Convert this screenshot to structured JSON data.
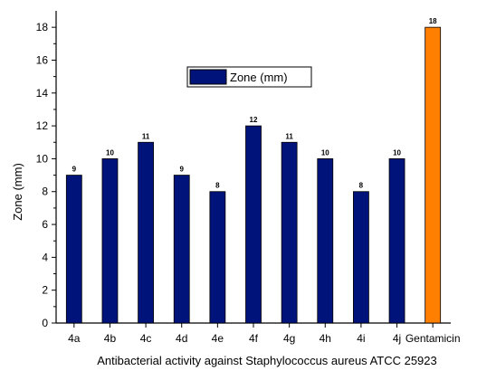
{
  "chart_data": {
    "type": "bar",
    "categories": [
      "4a",
      "4b",
      "4c",
      "4d",
      "4e",
      "4f",
      "4g",
      "4h",
      "4i",
      "4j",
      "Gentamicin"
    ],
    "series": [
      {
        "name": "Zone (mm)",
        "values": [
          9,
          10,
          11,
          9,
          8,
          12,
          11,
          10,
          8,
          10,
          18
        ],
        "color": "#00137a"
      }
    ],
    "highlight": {
      "category": "Gentamicin",
      "color": "#ff7f00"
    },
    "data_labels": [
      "9",
      "10",
      "11",
      "9",
      "8",
      "12",
      "11",
      "10",
      "8",
      "10",
      "18"
    ],
    "xlabel": "Antibacterial activity against Staphylococcus aureus ATCC 25923",
    "ylabel": "Zone (mm)",
    "ylim": [
      0,
      19
    ],
    "yticks": [
      0,
      2,
      4,
      6,
      8,
      10,
      12,
      14,
      16,
      18
    ],
    "grid": false,
    "legend": {
      "position": "upper-center",
      "label": "Zone (mm)"
    }
  }
}
